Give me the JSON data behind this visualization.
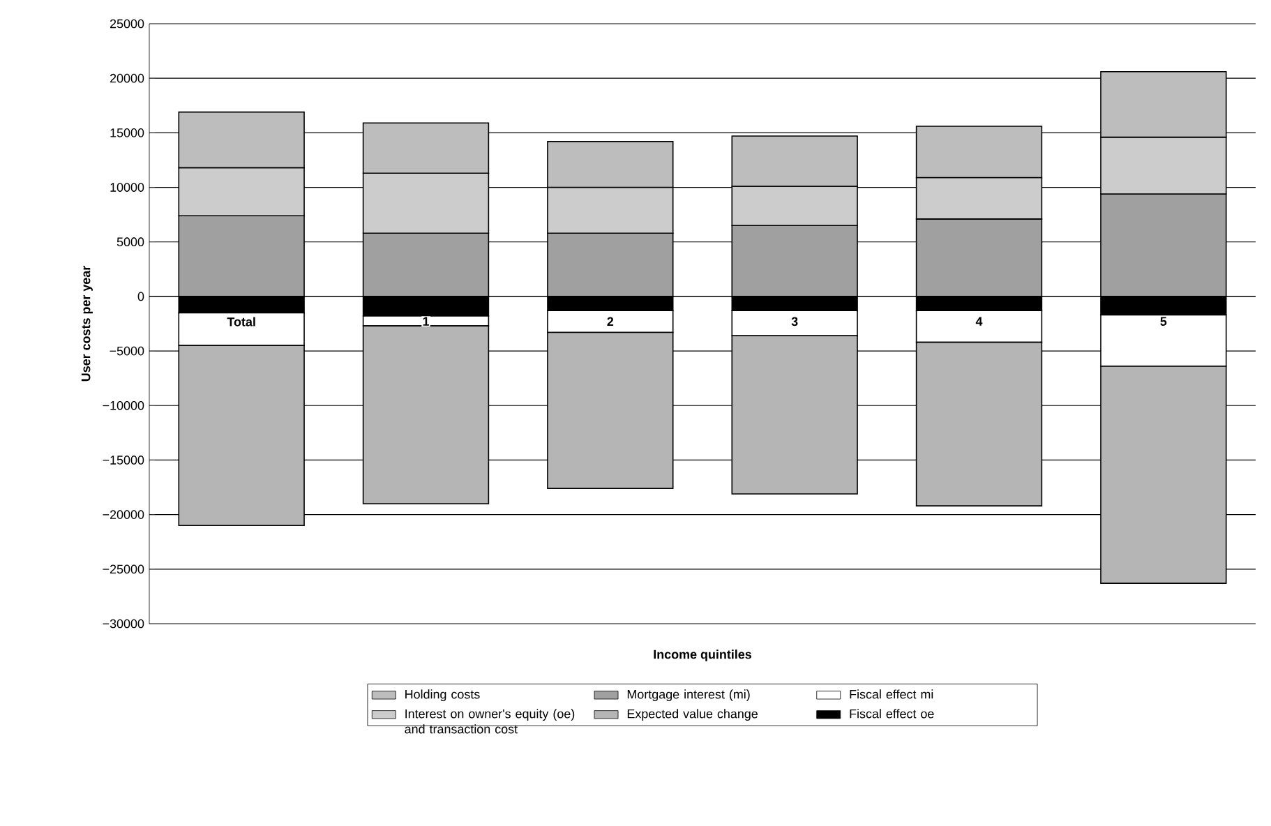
{
  "chart_data": {
    "type": "bar",
    "stacked": true,
    "xlabel": "Income quintiles",
    "ylabel": "User costs per year",
    "categories": [
      "Total",
      "1",
      "2",
      "3",
      "4",
      "5"
    ],
    "series": [
      {
        "name": "Mortgage interest (mi)",
        "color": "#a0a0a0",
        "values": [
          7400,
          5800,
          5800,
          6500,
          7100,
          9400
        ]
      },
      {
        "name": "Interest on owner's equity (oe) and transaction cost",
        "color": "#cccccc",
        "values": [
          4400,
          5500,
          4200,
          3600,
          3800,
          5200
        ]
      },
      {
        "name": "Holding costs",
        "color": "#bdbdbd",
        "values": [
          5100,
          4600,
          4200,
          4600,
          4700,
          6000
        ]
      },
      {
        "name": "Fiscal effect oe",
        "color": "#000000",
        "values": [
          -1500,
          -1800,
          -1300,
          -1300,
          -1300,
          -1700
        ]
      },
      {
        "name": "Fiscal effect mi",
        "color": "#ffffff",
        "values": [
          -3000,
          -900,
          -2000,
          -2300,
          -2900,
          -4700
        ]
      },
      {
        "name": "Expected value change",
        "color": "#b5b5b5",
        "values": [
          -16500,
          -16300,
          -14300,
          -14500,
          -15000,
          -19900
        ]
      }
    ],
    "ylim": [
      -30000,
      25000
    ],
    "yticks": [
      {
        "value": -30000,
        "label": "−30000"
      },
      {
        "value": -25000,
        "label": "−25000"
      },
      {
        "value": -20000,
        "label": "−20000"
      },
      {
        "value": -15000,
        "label": "−15000"
      },
      {
        "value": -10000,
        "label": "−10000"
      },
      {
        "value": -5000,
        "label": "−5000"
      },
      0,
      5000,
      10000,
      15000,
      20000,
      25000
    ],
    "grid": "y",
    "legend": "bottom"
  }
}
